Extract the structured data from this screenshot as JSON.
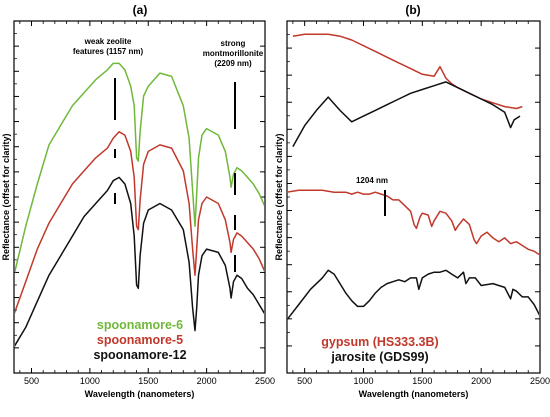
{
  "chart_data": [
    {
      "panel": "(a)",
      "type": "line",
      "xlabel": "Wavelength (nanometers)",
      "ylabel": "Reflectance (offset for clarity)",
      "xlim": [
        350,
        2500
      ],
      "xticks": [
        500,
        1000,
        1500,
        2000,
        2500
      ],
      "grid": false,
      "legend_position": "bottom-left",
      "annotations": [
        {
          "text_lines": [
            "weak zeolite",
            "features (1157 nm)"
          ],
          "x": 1157
        },
        {
          "text_lines": [
            "strong",
            "montmorillonite",
            "(2209 nm)"
          ],
          "x": 2209
        }
      ],
      "series": [
        {
          "name": "spoonamore-6",
          "color": "#70b83a",
          "x": [
            350,
            450,
            550,
            650,
            750,
            850,
            950,
            1050,
            1150,
            1200,
            1250,
            1300,
            1350,
            1380,
            1400,
            1415,
            1430,
            1460,
            1500,
            1600,
            1700,
            1800,
            1850,
            1880,
            1900,
            1915,
            1930,
            1960,
            2000,
            2100,
            2160,
            2200,
            2210,
            2230,
            2260,
            2300,
            2350,
            2400,
            2450,
            2500
          ],
          "y": [
            0.3,
            0.45,
            0.58,
            0.7,
            0.76,
            0.82,
            0.86,
            0.9,
            0.93,
            0.95,
            0.95,
            0.93,
            0.88,
            0.82,
            0.66,
            0.65,
            0.74,
            0.85,
            0.88,
            0.92,
            0.91,
            0.82,
            0.72,
            0.56,
            0.45,
            0.55,
            0.66,
            0.73,
            0.75,
            0.73,
            0.68,
            0.6,
            0.57,
            0.61,
            0.63,
            0.62,
            0.6,
            0.58,
            0.55,
            0.51
          ]
        },
        {
          "name": "spoonamore-5",
          "color": "#c0392b",
          "x": [
            350,
            450,
            550,
            650,
            750,
            850,
            950,
            1050,
            1150,
            1200,
            1250,
            1300,
            1350,
            1380,
            1400,
            1415,
            1430,
            1460,
            1500,
            1600,
            1700,
            1800,
            1850,
            1880,
            1900,
            1915,
            1930,
            1960,
            2000,
            2100,
            2160,
            2200,
            2210,
            2230,
            2260,
            2300,
            2350,
            2400,
            2450,
            2500
          ],
          "y": [
            0.18,
            0.28,
            0.38,
            0.46,
            0.52,
            0.58,
            0.62,
            0.66,
            0.69,
            0.72,
            0.74,
            0.73,
            0.68,
            0.6,
            0.45,
            0.44,
            0.53,
            0.64,
            0.68,
            0.7,
            0.69,
            0.62,
            0.52,
            0.38,
            0.3,
            0.38,
            0.47,
            0.52,
            0.54,
            0.52,
            0.47,
            0.4,
            0.37,
            0.41,
            0.43,
            0.42,
            0.4,
            0.38,
            0.35,
            0.31
          ]
        },
        {
          "name": "spoonamore-12",
          "color": "#111111",
          "x": [
            350,
            450,
            550,
            650,
            750,
            850,
            950,
            1050,
            1150,
            1200,
            1250,
            1300,
            1350,
            1380,
            1400,
            1415,
            1430,
            1460,
            1500,
            1600,
            1700,
            1800,
            1850,
            1880,
            1900,
            1915,
            1930,
            1960,
            2000,
            2100,
            2160,
            2200,
            2210,
            2230,
            2260,
            2300,
            2350,
            2400,
            2450,
            2500
          ],
          "y": [
            0.08,
            0.14,
            0.22,
            0.3,
            0.36,
            0.42,
            0.48,
            0.52,
            0.56,
            0.59,
            0.6,
            0.58,
            0.52,
            0.42,
            0.27,
            0.26,
            0.36,
            0.46,
            0.5,
            0.52,
            0.5,
            0.44,
            0.34,
            0.2,
            0.13,
            0.2,
            0.3,
            0.36,
            0.38,
            0.37,
            0.33,
            0.26,
            0.23,
            0.28,
            0.3,
            0.29,
            0.26,
            0.24,
            0.21,
            0.18
          ]
        }
      ]
    },
    {
      "panel": "(b)",
      "type": "line",
      "xlabel": "Wavelength (nanometers)",
      "ylabel": "Reflectance (offset for clarity)",
      "xlim": [
        350,
        2500
      ],
      "xticks": [
        500,
        1000,
        1500,
        2000,
        2500
      ],
      "grid": false,
      "legend_position": "bottom-left",
      "annotations": [
        {
          "text_lines": [
            "1204 nm"
          ],
          "x": 1204
        }
      ],
      "series": [
        {
          "name": "",
          "color": "#c0392b",
          "x": [
            400,
            500,
            600,
            700,
            800,
            900,
            1000,
            1100,
            1200,
            1300,
            1400,
            1500,
            1600,
            1650,
            1700,
            1750,
            1800,
            1900,
            2000,
            2100,
            2200,
            2300,
            2350
          ],
          "y": [
            0.97,
            0.98,
            0.98,
            0.98,
            0.97,
            0.95,
            0.92,
            0.89,
            0.86,
            0.83,
            0.8,
            0.77,
            0.76,
            0.81,
            0.75,
            0.72,
            0.7,
            0.67,
            0.64,
            0.62,
            0.6,
            0.59,
            0.6
          ]
        },
        {
          "name": "",
          "color": "#111111",
          "x": [
            400,
            500,
            600,
            700,
            800,
            900,
            1000,
            1100,
            1200,
            1300,
            1400,
            1500,
            1600,
            1700,
            1800,
            1900,
            2000,
            2100,
            2200,
            2250,
            2280,
            2330
          ],
          "y": [
            0.39,
            0.5,
            0.58,
            0.65,
            0.58,
            0.52,
            0.55,
            0.58,
            0.61,
            0.64,
            0.67,
            0.69,
            0.71,
            0.73,
            0.7,
            0.67,
            0.64,
            0.61,
            0.57,
            0.49,
            0.53,
            0.55
          ]
        },
        {
          "name": "gypsum (HS333.3B)",
          "color": "#c0392b",
          "x": [
            350,
            450,
            550,
            650,
            750,
            850,
            900,
            950,
            1000,
            1050,
            1100,
            1150,
            1200,
            1250,
            1300,
            1350,
            1400,
            1430,
            1450,
            1480,
            1500,
            1550,
            1580,
            1600,
            1650,
            1700,
            1750,
            1780,
            1800,
            1850,
            1900,
            1940,
            1960,
            2000,
            2050,
            2100,
            2150,
            2200,
            2250,
            2300,
            2350,
            2400,
            2450,
            2500
          ],
          "y": [
            0.15,
            0.16,
            0.16,
            0.16,
            0.15,
            0.15,
            0.14,
            0.15,
            0.14,
            0.14,
            0.15,
            0.14,
            0.13,
            0.11,
            0.11,
            0.08,
            0.05,
            -0.02,
            -0.04,
            0.02,
            0.04,
            0.03,
            -0.03,
            0.0,
            0.05,
            0.04,
            0.0,
            -0.05,
            -0.03,
            0.01,
            -0.02,
            -0.1,
            -0.12,
            -0.08,
            -0.06,
            -0.09,
            -0.11,
            -0.09,
            -0.12,
            -0.11,
            -0.13,
            -0.15,
            -0.16,
            -0.18
          ]
        },
        {
          "name": "jarosite (GDS99)",
          "color": "#111111",
          "x": [
            350,
            450,
            550,
            650,
            700,
            750,
            800,
            850,
            900,
            950,
            1000,
            1050,
            1100,
            1150,
            1200,
            1250,
            1300,
            1350,
            1400,
            1450,
            1470,
            1500,
            1550,
            1600,
            1650,
            1700,
            1750,
            1800,
            1850,
            1870,
            1900,
            1950,
            2000,
            2100,
            2200,
            2250,
            2270,
            2300,
            2350,
            2400,
            2450,
            2500
          ],
          "y": [
            -0.52,
            -0.44,
            -0.36,
            -0.3,
            -0.26,
            -0.28,
            -0.33,
            -0.38,
            -0.42,
            -0.45,
            -0.45,
            -0.42,
            -0.38,
            -0.35,
            -0.33,
            -0.32,
            -0.31,
            -0.32,
            -0.3,
            -0.3,
            -0.36,
            -0.3,
            -0.28,
            -0.27,
            -0.27,
            -0.26,
            -0.28,
            -0.3,
            -0.27,
            -0.33,
            -0.3,
            -0.3,
            -0.34,
            -0.33,
            -0.35,
            -0.41,
            -0.36,
            -0.37,
            -0.4,
            -0.4,
            -0.44,
            -0.5
          ]
        }
      ]
    }
  ]
}
